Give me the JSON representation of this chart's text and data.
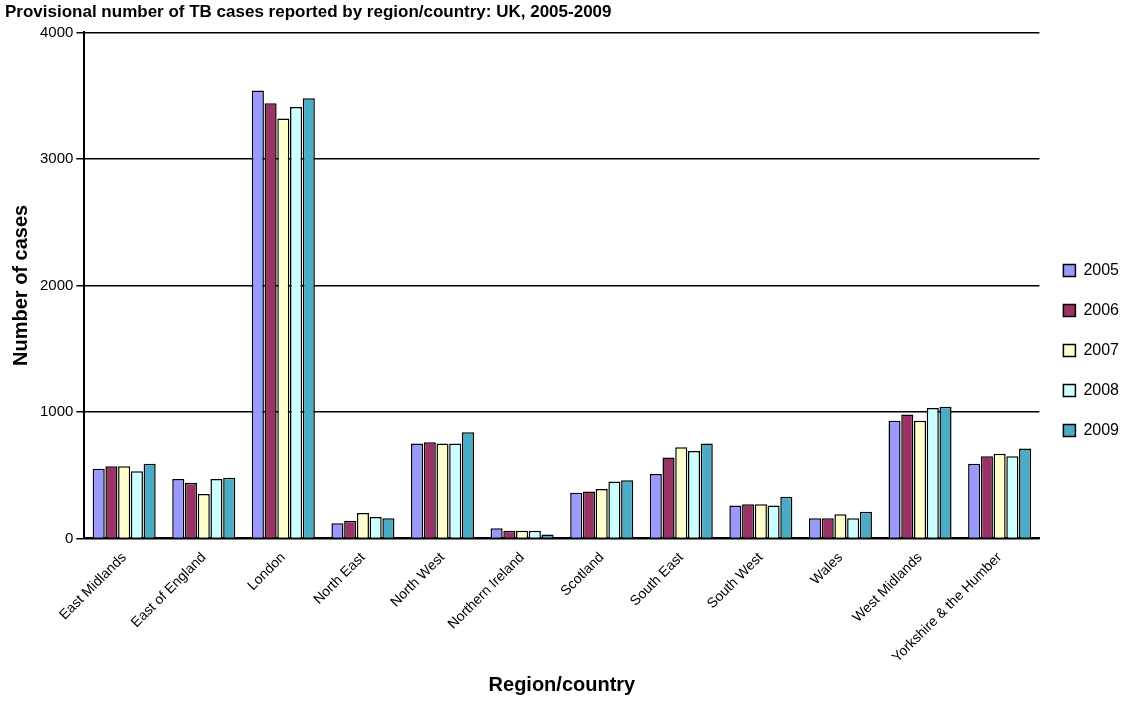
{
  "chart_data": {
    "type": "bar",
    "title": "Provisional number of TB cases reported by region/country: UK, 2005-2009",
    "xlabel": "Region/country",
    "ylabel": "Number of cases",
    "categories": [
      "East Midlands",
      "East of England",
      "London",
      "North East",
      "North West",
      "Northern Ireland",
      "Scotland",
      "South East",
      "South West",
      "Wales",
      "West Midlands",
      "Yorkshire & the Humber"
    ],
    "series": [
      {
        "name": "2005",
        "color": "#9999ff",
        "values": [
          550,
          470,
          3540,
          120,
          750,
          80,
          360,
          510,
          260,
          160,
          930,
          590
        ]
      },
      {
        "name": "2006",
        "color": "#993366",
        "values": [
          570,
          440,
          3440,
          140,
          760,
          60,
          370,
          640,
          270,
          160,
          980,
          650
        ]
      },
      {
        "name": "2007",
        "color": "#ffffcc",
        "values": [
          570,
          350,
          3320,
          200,
          750,
          60,
          390,
          720,
          270,
          190,
          930,
          670
        ]
      },
      {
        "name": "2008",
        "color": "#ccffff",
        "values": [
          530,
          470,
          3410,
          170,
          750,
          60,
          450,
          690,
          260,
          160,
          1030,
          650
        ]
      },
      {
        "name": "2009",
        "color": "#4bacc6",
        "values": [
          590,
          480,
          3480,
          160,
          840,
          30,
          460,
          750,
          330,
          210,
          1040,
          710
        ]
      }
    ],
    "ylim": [
      0,
      4000
    ],
    "yticks": [
      0,
      1000,
      2000,
      3000,
      4000
    ],
    "grid": "y",
    "legend": "right"
  }
}
